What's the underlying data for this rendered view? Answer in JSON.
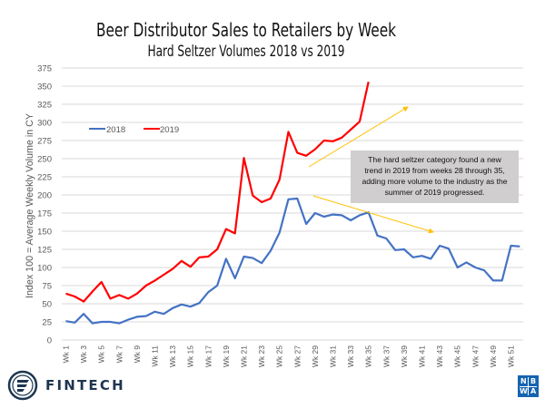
{
  "chart_data": {
    "type": "line",
    "title": "Beer Distributor Sales to Retailers by Week",
    "subtitle": "Hard Seltzer Volumes 2018 vs 2019",
    "xlabel": "",
    "ylabel": "Index 100 = Average Weekly Volume in CY",
    "ylim": [
      0,
      375
    ],
    "yticks": [
      0,
      25,
      50,
      75,
      100,
      125,
      150,
      175,
      200,
      225,
      250,
      275,
      300,
      325,
      350,
      375
    ],
    "ytick_labels": [
      "0",
      "25",
      "50",
      "75",
      "100",
      "125",
      "150",
      "175",
      "200",
      "225",
      "250",
      "275",
      "300",
      "325",
      "350",
      "375"
    ],
    "grid": true,
    "legend_position": "top-left",
    "x_count": 52,
    "xtick_labels": [
      "Wk 1",
      "Wk 3",
      "Wk 5",
      "Wk 7",
      "Wk 9",
      "Wk 11",
      "Wk 13",
      "Wk 15",
      "Wk 17",
      "Wk 19",
      "Wk 21",
      "Wk 23",
      "Wk 25",
      "Wk 27",
      "Wk 29",
      "Wk 31",
      "Wk 33",
      "Wk 35",
      "Wk 37",
      "Wk 39",
      "Wk 41",
      "Wk 43",
      "Wk 45",
      "Wk 47",
      "Wk 49",
      "Wk 51"
    ],
    "xtick_weeks": [
      1,
      3,
      5,
      7,
      9,
      11,
      13,
      15,
      17,
      19,
      21,
      23,
      25,
      27,
      29,
      31,
      33,
      35,
      37,
      39,
      41,
      43,
      45,
      47,
      49,
      51
    ],
    "series": [
      {
        "name": "2018",
        "color": "#4472c4",
        "values": [
          26,
          24,
          36,
          23,
          25,
          25,
          23,
          28,
          32,
          33,
          39,
          36,
          44,
          49,
          46,
          51,
          66,
          75,
          112,
          85,
          115,
          113,
          106,
          123,
          148,
          194,
          195,
          160,
          175,
          170,
          173,
          172,
          165,
          172,
          176,
          144,
          140,
          124,
          125,
          114,
          116,
          112,
          130,
          126,
          100,
          107,
          100,
          96,
          82,
          82,
          130,
          129
        ]
      },
      {
        "name": "2019",
        "color": "#ff0000",
        "values": [
          64,
          60,
          53,
          67,
          80,
          57,
          62,
          57,
          64,
          75,
          82,
          90,
          98,
          109,
          101,
          114,
          115,
          125,
          153,
          147,
          251,
          199,
          190,
          195,
          221,
          287,
          258,
          254,
          263,
          275,
          274,
          279,
          290,
          301,
          356
        ]
      }
    ],
    "annotation": {
      "lines": [
        "The hard seltzer category found a new",
        "trend in 2019 from weeks 28 through  35,",
        "adding more volume to the industry as the",
        "summer of 2019 progressed."
      ],
      "box_color": "#d0cece",
      "arrow_color": "#ffc000"
    }
  },
  "logos": {
    "fintech": "FINTECH",
    "nbwa": [
      "N",
      "B",
      "W",
      "A"
    ]
  }
}
